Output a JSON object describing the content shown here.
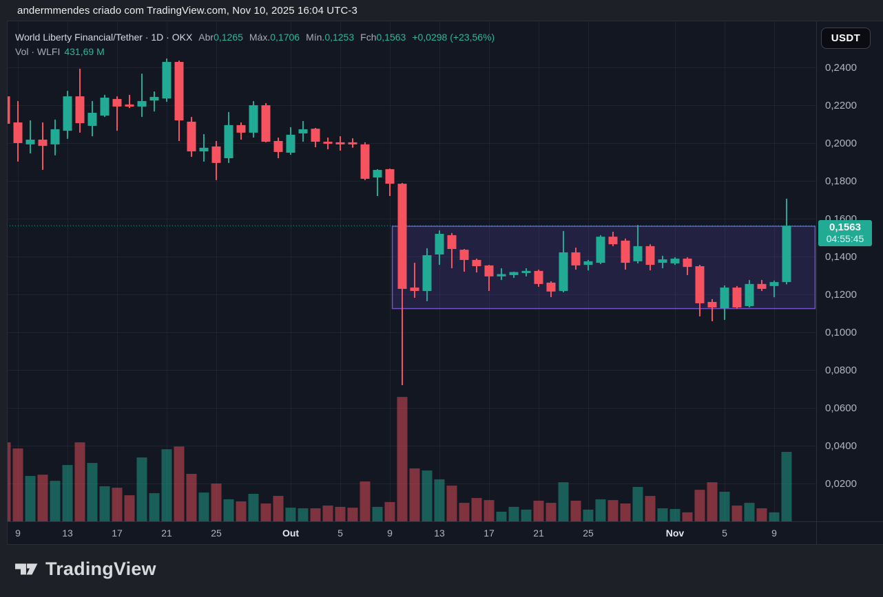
{
  "attribution": "andermmendes criado com TradingView.com, Nov 10, 2025 16:04 UTC-3",
  "header": {
    "title": "World Liberty Financial/Tether · 1D · OKX",
    "pairs": [
      {
        "label": "Abr",
        "value": "0,1265"
      },
      {
        "label": "Máx.",
        "value": "0,1706"
      },
      {
        "label": "Mín.",
        "value": "0,1253"
      },
      {
        "label": "Fch",
        "value": "0,1563"
      }
    ],
    "change": "+0,0298 (+23,56%)",
    "vol_label": "Vol · WLFI",
    "vol_value": "431,69 M"
  },
  "currency_button_label": "USDT",
  "price_badge": {
    "price": "0,1563",
    "countdown": "04:55:45"
  },
  "footer_logo_text": "TradingView",
  "colors": {
    "outer_bg": "#1d2027",
    "pane_bg": "#131722",
    "border": "#2a2e39",
    "grid": "rgba(240,243,250,0.06)",
    "up": "#22ab94",
    "down": "#f7525f",
    "vol_up": "rgba(34,171,148,0.48)",
    "vol_down": "rgba(247,82,95,0.48)",
    "box_border": "#7452c9",
    "box_fill": "rgba(116,82,217,0.17)",
    "price_line": "#22ab94",
    "badge_bg": "#22ab94",
    "axis_text": "#b2b5be",
    "axis_text_bold": "#e4e7ee"
  },
  "chart_data": {
    "type": "candlestick",
    "symbol_title": "World Liberty Financial/Tether",
    "interval": "1D",
    "exchange": "OKX",
    "quote_currency": "USDT",
    "last_candle": {
      "open": 0.1265,
      "high": 0.1706,
      "low": 0.1253,
      "close": 0.1563,
      "change_abs": 0.0298,
      "change_pct": 23.56
    },
    "last_volume_millions": 431.69,
    "price_line": 0.1563,
    "price_axis": {
      "min": 0.02,
      "max": 0.24,
      "tick_step": 0.02,
      "ticks": [
        {
          "label": "0,2400",
          "value": 0.24
        },
        {
          "label": "0,2200",
          "value": 0.22
        },
        {
          "label": "0,2000",
          "value": 0.2
        },
        {
          "label": "0,1800",
          "value": 0.18
        },
        {
          "label": "0,1600",
          "value": 0.16
        },
        {
          "label": "0,1400",
          "value": 0.14
        },
        {
          "label": "0,1200",
          "value": 0.12
        },
        {
          "label": "0,1000",
          "value": 0.1
        },
        {
          "label": "0,0800",
          "value": 0.08
        },
        {
          "label": "0,0600",
          "value": 0.06
        },
        {
          "label": "0,0400",
          "value": 0.04
        },
        {
          "label": "0,0200",
          "value": 0.02
        }
      ]
    },
    "time_axis": {
      "ticks": [
        {
          "label": "9",
          "day": 1,
          "bold": false
        },
        {
          "label": "13",
          "day": 5,
          "bold": false
        },
        {
          "label": "17",
          "day": 9,
          "bold": false
        },
        {
          "label": "21",
          "day": 13,
          "bold": false
        },
        {
          "label": "25",
          "day": 17,
          "bold": false
        },
        {
          "label": "Out",
          "day": 23,
          "bold": true
        },
        {
          "label": "5",
          "day": 27,
          "bold": false
        },
        {
          "label": "9",
          "day": 31,
          "bold": false
        },
        {
          "label": "13",
          "day": 35,
          "bold": false
        },
        {
          "label": "17",
          "day": 39,
          "bold": false
        },
        {
          "label": "21",
          "day": 43,
          "bold": false
        },
        {
          "label": "25",
          "day": 47,
          "bold": false
        },
        {
          "label": "Nov",
          "day": 54,
          "bold": true
        },
        {
          "label": "5",
          "day": 58,
          "bold": false
        },
        {
          "label": "9",
          "day": 62,
          "bold": false
        }
      ]
    },
    "range_box": {
      "day_from": 31.2,
      "day_to": 65.3,
      "price_top": 0.156,
      "price_bottom": 0.1125
    },
    "candles": [
      {
        "d": "8 set",
        "o": 0.2247,
        "h": 0.2265,
        "l": 0.2084,
        "c": 0.2102,
        "v": 491
      },
      {
        "d": "9 set",
        "o": 0.2109,
        "h": 0.2222,
        "l": 0.1902,
        "c": 0.2,
        "v": 453
      },
      {
        "d": "10 set",
        "o": 0.1993,
        "h": 0.212,
        "l": 0.1945,
        "c": 0.2018,
        "v": 282
      },
      {
        "d": "11 set",
        "o": 0.2018,
        "h": 0.2109,
        "l": 0.1858,
        "c": 0.1985,
        "v": 290
      },
      {
        "d": "12 set",
        "o": 0.1993,
        "h": 0.2124,
        "l": 0.1935,
        "c": 0.2073,
        "v": 252
      },
      {
        "d": "13 set",
        "o": 0.2065,
        "h": 0.2276,
        "l": 0.2022,
        "c": 0.2247,
        "v": 350
      },
      {
        "d": "14 set",
        "o": 0.2247,
        "h": 0.2393,
        "l": 0.2055,
        "c": 0.2105,
        "v": 491
      },
      {
        "d": "15 set",
        "o": 0.2091,
        "h": 0.2222,
        "l": 0.2036,
        "c": 0.216,
        "v": 363
      },
      {
        "d": "16 set",
        "o": 0.2145,
        "h": 0.2255,
        "l": 0.2138,
        "c": 0.224,
        "v": 218
      },
      {
        "d": "17 set",
        "o": 0.2233,
        "h": 0.2247,
        "l": 0.2065,
        "c": 0.2193,
        "v": 209
      },
      {
        "d": "18 set",
        "o": 0.2204,
        "h": 0.2255,
        "l": 0.2185,
        "c": 0.2193,
        "v": 162
      },
      {
        "d": "19 set",
        "o": 0.2193,
        "h": 0.2367,
        "l": 0.2138,
        "c": 0.2222,
        "v": 397
      },
      {
        "d": "20 set",
        "o": 0.2225,
        "h": 0.2273,
        "l": 0.2167,
        "c": 0.2244,
        "v": 175
      },
      {
        "d": "21 set",
        "o": 0.2236,
        "h": 0.2447,
        "l": 0.2218,
        "c": 0.2429,
        "v": 448
      },
      {
        "d": "22 set",
        "o": 0.2429,
        "h": 0.2436,
        "l": 0.2011,
        "c": 0.212,
        "v": 465
      },
      {
        "d": "23 set",
        "o": 0.2113,
        "h": 0.2138,
        "l": 0.1927,
        "c": 0.1956,
        "v": 295
      },
      {
        "d": "24 set",
        "o": 0.1956,
        "h": 0.2047,
        "l": 0.1902,
        "c": 0.1975,
        "v": 179
      },
      {
        "d": "25 set",
        "o": 0.1982,
        "h": 0.2011,
        "l": 0.1804,
        "c": 0.1895,
        "v": 235
      },
      {
        "d": "26 set",
        "o": 0.192,
        "h": 0.2164,
        "l": 0.1895,
        "c": 0.2095,
        "v": 137
      },
      {
        "d": "27 set",
        "o": 0.2095,
        "h": 0.2109,
        "l": 0.2018,
        "c": 0.2055,
        "v": 124
      },
      {
        "d": "28 set",
        "o": 0.2055,
        "h": 0.2222,
        "l": 0.2029,
        "c": 0.22,
        "v": 171
      },
      {
        "d": "29 set",
        "o": 0.22,
        "h": 0.2211,
        "l": 0.2004,
        "c": 0.2007,
        "v": 111
      },
      {
        "d": "30 set",
        "o": 0.2011,
        "h": 0.2029,
        "l": 0.192,
        "c": 0.1953,
        "v": 158
      },
      {
        "d": "1 out",
        "o": 0.1949,
        "h": 0.2084,
        "l": 0.1938,
        "c": 0.2044,
        "v": 85
      },
      {
        "d": "2 out",
        "o": 0.2051,
        "h": 0.2116,
        "l": 0.2007,
        "c": 0.2073,
        "v": 81
      },
      {
        "d": "3 out",
        "o": 0.2076,
        "h": 0.208,
        "l": 0.1978,
        "c": 0.2007,
        "v": 81
      },
      {
        "d": "4 out",
        "o": 0.2007,
        "h": 0.2029,
        "l": 0.1967,
        "c": 0.1996,
        "v": 98
      },
      {
        "d": "5 out",
        "o": 0.2004,
        "h": 0.2036,
        "l": 0.196,
        "c": 0.1993,
        "v": 90
      },
      {
        "d": "6 out",
        "o": 0.2004,
        "h": 0.2025,
        "l": 0.1975,
        "c": 0.1993,
        "v": 85
      },
      {
        "d": "7 out",
        "o": 0.1993,
        "h": 0.2004,
        "l": 0.1804,
        "c": 0.1811,
        "v": 248
      },
      {
        "d": "8 out",
        "o": 0.1818,
        "h": 0.1862,
        "l": 0.172,
        "c": 0.1858,
        "v": 90
      },
      {
        "d": "9 out",
        "o": 0.1862,
        "h": 0.1865,
        "l": 0.172,
        "c": 0.1785,
        "v": 120
      },
      {
        "d": "10 out",
        "o": 0.1785,
        "h": 0.1789,
        "l": 0.072,
        "c": 0.1229,
        "v": 773
      },
      {
        "d": "11 out",
        "o": 0.1236,
        "h": 0.1367,
        "l": 0.1182,
        "c": 0.1218,
        "v": 329
      },
      {
        "d": "12 out",
        "o": 0.1218,
        "h": 0.1444,
        "l": 0.1164,
        "c": 0.1407,
        "v": 316
      },
      {
        "d": "13 out",
        "o": 0.1411,
        "h": 0.1538,
        "l": 0.1356,
        "c": 0.152,
        "v": 261
      },
      {
        "d": "14 out",
        "o": 0.1513,
        "h": 0.1524,
        "l": 0.1338,
        "c": 0.144,
        "v": 222
      },
      {
        "d": "15 out",
        "o": 0.1436,
        "h": 0.144,
        "l": 0.132,
        "c": 0.1382,
        "v": 115
      },
      {
        "d": "16 out",
        "o": 0.1382,
        "h": 0.1389,
        "l": 0.1316,
        "c": 0.1349,
        "v": 145
      },
      {
        "d": "17 out",
        "o": 0.1353,
        "h": 0.1356,
        "l": 0.1218,
        "c": 0.1295,
        "v": 132
      },
      {
        "d": "18 out",
        "o": 0.1295,
        "h": 0.1338,
        "l": 0.1276,
        "c": 0.1307,
        "v": 60
      },
      {
        "d": "19 out",
        "o": 0.1302,
        "h": 0.132,
        "l": 0.1287,
        "c": 0.1318,
        "v": 90
      },
      {
        "d": "20 out",
        "o": 0.1313,
        "h": 0.1338,
        "l": 0.1295,
        "c": 0.1324,
        "v": 73
      },
      {
        "d": "21 out",
        "o": 0.1324,
        "h": 0.1331,
        "l": 0.124,
        "c": 0.1255,
        "v": 128
      },
      {
        "d": "22 out",
        "o": 0.1262,
        "h": 0.1269,
        "l": 0.1185,
        "c": 0.1215,
        "v": 115
      },
      {
        "d": "23 out",
        "o": 0.1218,
        "h": 0.1535,
        "l": 0.1211,
        "c": 0.1422,
        "v": 243
      },
      {
        "d": "24 out",
        "o": 0.1422,
        "h": 0.1447,
        "l": 0.1331,
        "c": 0.1353,
        "v": 128
      },
      {
        "d": "25 out",
        "o": 0.1356,
        "h": 0.1382,
        "l": 0.1327,
        "c": 0.1375,
        "v": 73
      },
      {
        "d": "26 out",
        "o": 0.1367,
        "h": 0.1513,
        "l": 0.136,
        "c": 0.1505,
        "v": 137
      },
      {
        "d": "27 out",
        "o": 0.1505,
        "h": 0.1531,
        "l": 0.1455,
        "c": 0.1465,
        "v": 132
      },
      {
        "d": "28 out",
        "o": 0.1484,
        "h": 0.1495,
        "l": 0.1331,
        "c": 0.1367,
        "v": 111
      },
      {
        "d": "29 out",
        "o": 0.1375,
        "h": 0.1567,
        "l": 0.1364,
        "c": 0.1455,
        "v": 214
      },
      {
        "d": "30 out",
        "o": 0.1455,
        "h": 0.1465,
        "l": 0.1327,
        "c": 0.1356,
        "v": 158
      },
      {
        "d": "31 out",
        "o": 0.1367,
        "h": 0.1404,
        "l": 0.1338,
        "c": 0.1385,
        "v": 81
      },
      {
        "d": "1 nov",
        "o": 0.1364,
        "h": 0.1396,
        "l": 0.1356,
        "c": 0.1389,
        "v": 77
      },
      {
        "d": "2 nov",
        "o": 0.1389,
        "h": 0.1396,
        "l": 0.1302,
        "c": 0.1345,
        "v": 56
      },
      {
        "d": "3 nov",
        "o": 0.1349,
        "h": 0.1356,
        "l": 0.1084,
        "c": 0.1153,
        "v": 196
      },
      {
        "d": "4 nov",
        "o": 0.116,
        "h": 0.1175,
        "l": 0.1058,
        "c": 0.1131,
        "v": 243
      },
      {
        "d": "5 nov",
        "o": 0.1127,
        "h": 0.1247,
        "l": 0.1065,
        "c": 0.1236,
        "v": 184
      },
      {
        "d": "6 nov",
        "o": 0.1236,
        "h": 0.1244,
        "l": 0.1124,
        "c": 0.1131,
        "v": 98
      },
      {
        "d": "7 nov",
        "o": 0.1138,
        "h": 0.1276,
        "l": 0.1131,
        "c": 0.1255,
        "v": 115
      },
      {
        "d": "8 nov",
        "o": 0.1255,
        "h": 0.1276,
        "l": 0.1218,
        "c": 0.1229,
        "v": 81
      },
      {
        "d": "9 nov",
        "o": 0.1244,
        "h": 0.1273,
        "l": 0.1185,
        "c": 0.1265,
        "v": 56
      },
      {
        "d": "10 nov",
        "o": 0.1265,
        "h": 0.1706,
        "l": 0.1253,
        "c": 0.1563,
        "v": 431.69
      }
    ]
  }
}
